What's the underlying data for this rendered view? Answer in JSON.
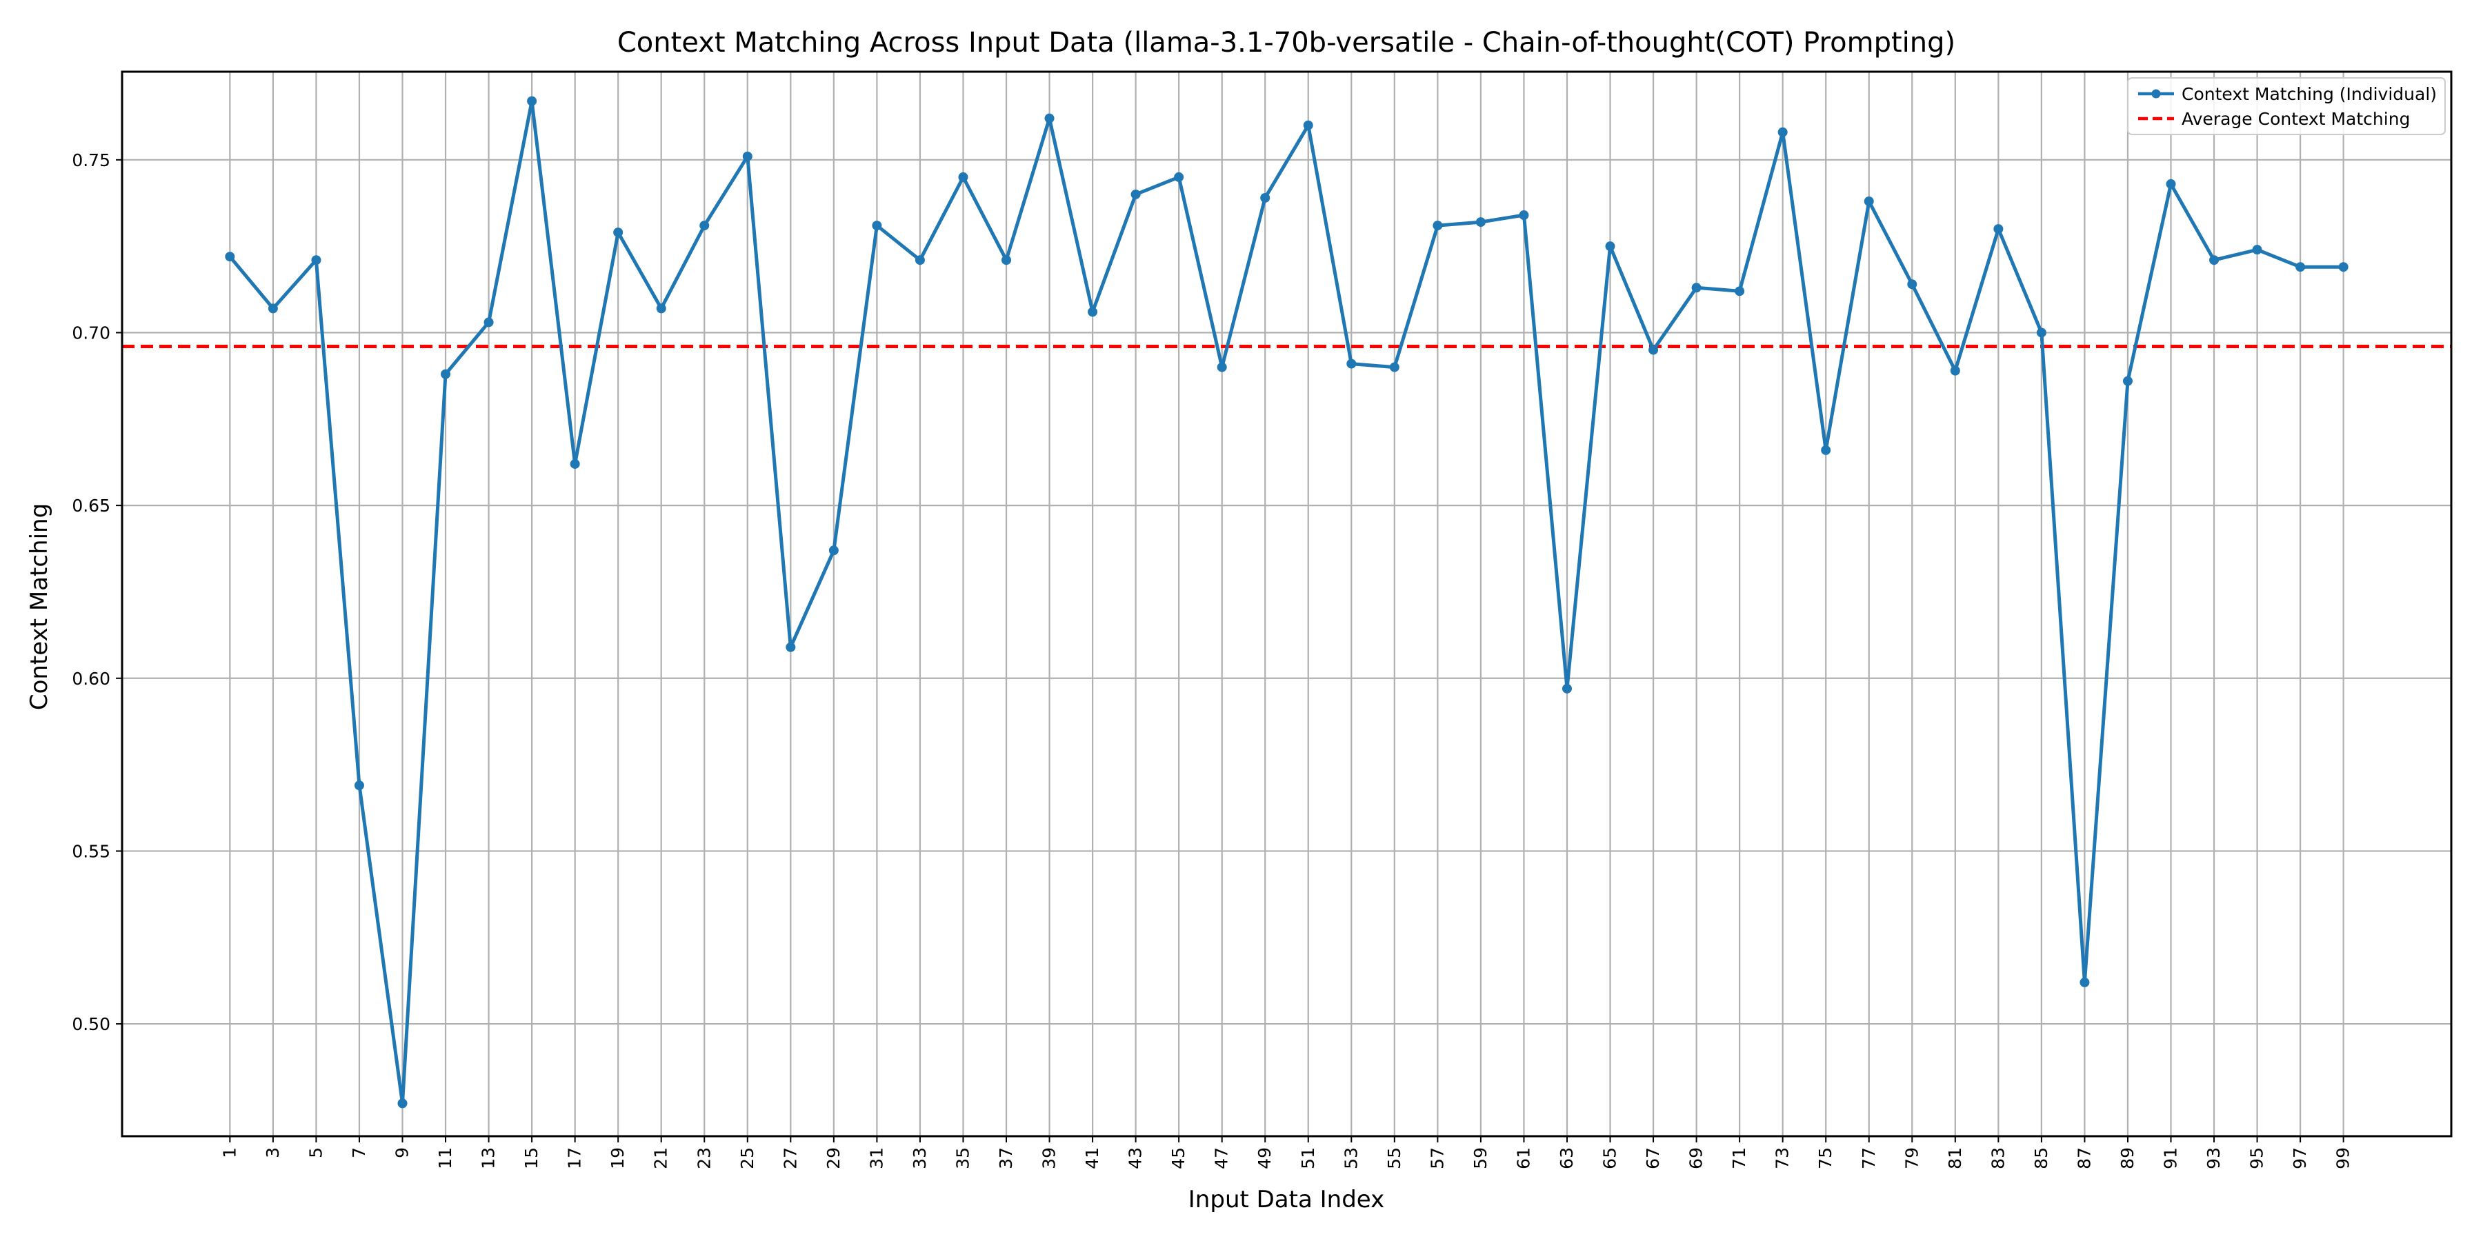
{
  "chart_data": {
    "type": "line",
    "title": "Context Matching Across Input Data (llama-3.1-70b-versatile - Chain-of-thought(COT) Prompting)",
    "xlabel": "Input Data Index",
    "ylabel": "Context Matching",
    "x": [
      1,
      3,
      5,
      7,
      9,
      11,
      13,
      15,
      17,
      19,
      21,
      23,
      25,
      27,
      29,
      31,
      33,
      35,
      37,
      39,
      41,
      43,
      45,
      47,
      49,
      51,
      53,
      55,
      57,
      59,
      61,
      63,
      65,
      67,
      69,
      71,
      73,
      75,
      77,
      79,
      81,
      83,
      85,
      87,
      89,
      91,
      93,
      95,
      97,
      99
    ],
    "xlim": [
      -4,
      104
    ],
    "ylim": [
      0.4675,
      0.7755
    ],
    "yticks": [
      "0.50",
      "0.55",
      "0.60",
      "0.65",
      "0.70",
      "0.75"
    ],
    "grid": true,
    "legend_position": "top-right",
    "series": [
      {
        "name": "Context Matching (Individual)",
        "color": "#1f77b4",
        "style": "solid-with-markers",
        "values": [
          0.722,
          0.707,
          0.721,
          0.569,
          0.477,
          0.688,
          0.703,
          0.767,
          0.662,
          0.729,
          0.707,
          0.731,
          0.751,
          0.609,
          0.637,
          0.731,
          0.721,
          0.745,
          0.721,
          0.762,
          0.706,
          0.74,
          0.745,
          0.69,
          0.739,
          0.76,
          0.691,
          0.69,
          0.731,
          0.732,
          0.734,
          0.597,
          0.725,
          0.695,
          0.713,
          0.712,
          0.758,
          0.666,
          0.738,
          0.714,
          0.689,
          0.73,
          0.7,
          0.512,
          0.686,
          0.743,
          0.721,
          0.724,
          0.719,
          0.719
        ]
      },
      {
        "name": "Average Context Matching",
        "color": "#ff0000",
        "style": "dashed",
        "value": 0.696
      }
    ]
  }
}
